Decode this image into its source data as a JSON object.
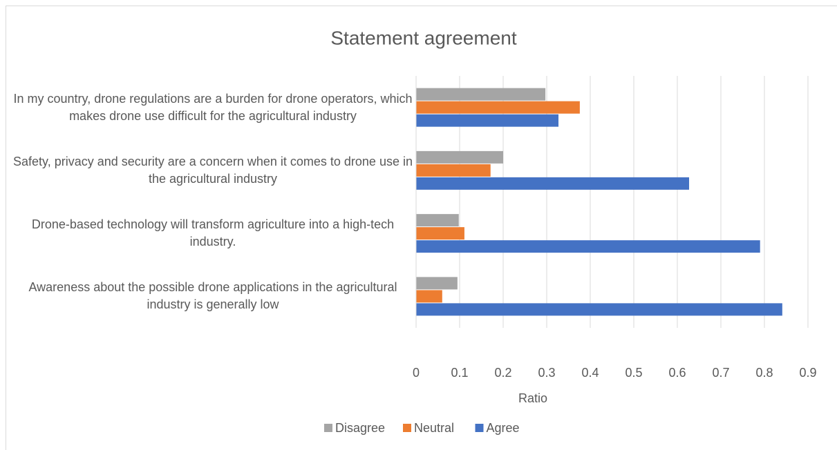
{
  "chart_data": {
    "type": "barh",
    "title": "Statement agreement",
    "x_label": "Ratio",
    "categories": [
      "In my country, drone regulations are a burden for drone operators, which makes drone use difficult for the agricultural industry",
      "Safety, privacy and security are a concern when it comes to drone use in the agricultural industry",
      "Drone-based technology will transform agriculture into a high-tech industry.",
      "Awareness about the possible drone applications in the agricultural industry is generally low"
    ],
    "series": [
      {
        "name": "Disagree",
        "color": "#a5a5a5",
        "values": [
          0.297,
          0.2,
          0.098,
          0.095
        ]
      },
      {
        "name": "Neutral",
        "color": "#ed7d31",
        "values": [
          0.376,
          0.171,
          0.111,
          0.06
        ]
      },
      {
        "name": "Agree",
        "color": "#4472c4",
        "values": [
          0.327,
          0.627,
          0.79,
          0.841
        ]
      }
    ],
    "xlim": [
      0,
      0.9
    ],
    "xticks": [
      0,
      0.1,
      0.2,
      0.3,
      0.4,
      0.5,
      0.6,
      0.7,
      0.8,
      0.9
    ],
    "grid": true,
    "legend": "bottom"
  }
}
